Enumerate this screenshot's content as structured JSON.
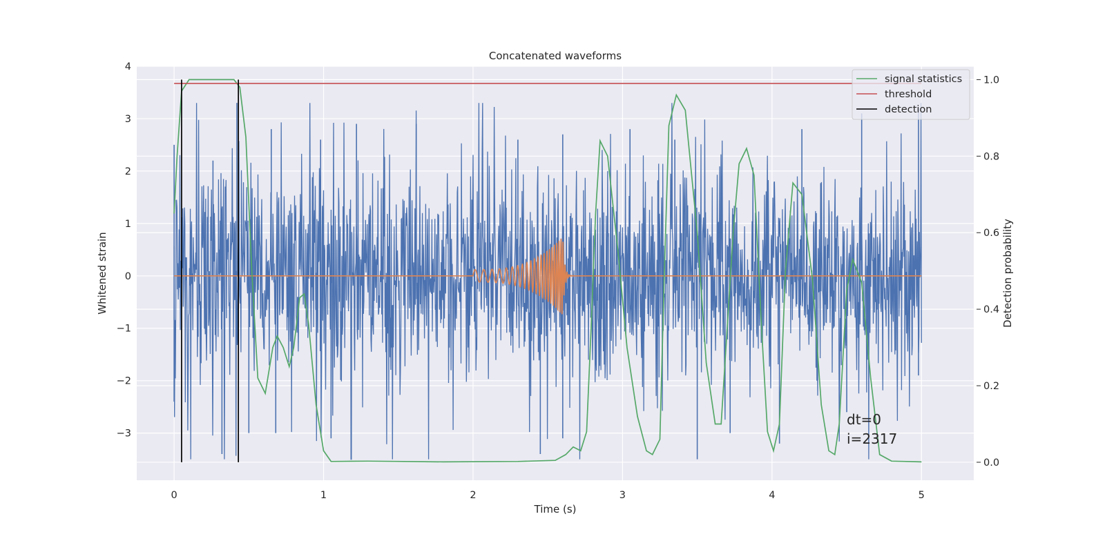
{
  "chart_data": {
    "type": "line",
    "title": "Concatenated waveforms",
    "xlabel": "Time (s)",
    "ylabel": "Whitened strain",
    "ylabel_right": "Detection probability",
    "xlim": [
      -0.25,
      5.35
    ],
    "ylim": [
      -3.9,
      4.0
    ],
    "ylim_right": [
      -0.047,
      1.035
    ],
    "x_ticks": [
      0,
      1,
      2,
      3,
      4,
      5
    ],
    "y_ticks": [
      -3,
      -2,
      -1,
      0,
      1,
      2,
      3,
      4
    ],
    "y_ticks_right": [
      0.0,
      0.2,
      0.4,
      0.6,
      0.8,
      1.0
    ],
    "y_tick_labels_right": [
      "0.0",
      "0.2",
      "0.4",
      "0.6",
      "0.8",
      "1.0"
    ],
    "grid": true,
    "legend_position": "top-right",
    "legend": [
      "signal statistics",
      "threshold",
      "detection"
    ],
    "annotation": [
      "dt=0",
      "i=2317"
    ],
    "series": [
      {
        "name": "whitened strain noise",
        "axis": "left",
        "color": "#4c72b0",
        "description": "white noise, approx. amplitude envelope",
        "x_range": [
          0,
          5
        ],
        "peak_high": [
          [
            0.0,
            2.5
          ],
          [
            0.26,
            2.2
          ],
          [
            0.42,
            3.3
          ],
          [
            0.65,
            2.8
          ],
          [
            0.98,
            2.6
          ],
          [
            1.22,
            2.9
          ],
          [
            1.62,
            2.9
          ],
          [
            2.3,
            2.6
          ],
          [
            2.6,
            2.7
          ],
          [
            3.05,
            2.8
          ],
          [
            3.35,
            2.6
          ],
          [
            4.2,
            2.8
          ],
          [
            4.6,
            3.1
          ],
          [
            4.98,
            3.2
          ]
        ],
        "peak_low": [
          [
            0.0,
            -2.4
          ],
          [
            0.32,
            -3.4
          ],
          [
            0.5,
            -3.0
          ],
          [
            0.68,
            -3.0
          ],
          [
            1.05,
            -3.1
          ],
          [
            2.45,
            -3.4
          ],
          [
            2.6,
            -3.1
          ],
          [
            3.5,
            -3.5
          ],
          [
            3.72,
            -3.0
          ],
          [
            4.05,
            -3.2
          ],
          [
            4.5,
            -2.6
          ],
          [
            4.98,
            -1.9
          ]
        ]
      },
      {
        "name": "injected waveform",
        "axis": "left",
        "color": "#dd8452",
        "description": "chirp starting at t=2.0 s, merger near t=2.6 s",
        "start": 2.0,
        "merger": 2.6,
        "amplitude_start": 0.12,
        "amplitude_peak": 0.75,
        "frequency_start_hz": 17,
        "frequency_end_hz": 75
      },
      {
        "name": "signal statistics",
        "axis": "right",
        "color": "#55a868",
        "points": [
          [
            0.0,
            0.65
          ],
          [
            0.02,
            0.8
          ],
          [
            0.05,
            0.97
          ],
          [
            0.1,
            1.0
          ],
          [
            0.4,
            1.0
          ],
          [
            0.44,
            0.98
          ],
          [
            0.48,
            0.85
          ],
          [
            0.52,
            0.5
          ],
          [
            0.56,
            0.22
          ],
          [
            0.61,
            0.18
          ],
          [
            0.66,
            0.3
          ],
          [
            0.69,
            0.33
          ],
          [
            0.73,
            0.3
          ],
          [
            0.77,
            0.25
          ],
          [
            0.8,
            0.3
          ],
          [
            0.84,
            0.43
          ],
          [
            0.87,
            0.44
          ],
          [
            0.9,
            0.36
          ],
          [
            0.95,
            0.15
          ],
          [
            1.0,
            0.03
          ],
          [
            1.05,
            0.002
          ],
          [
            1.3,
            0.003
          ],
          [
            1.8,
            0.001
          ],
          [
            2.3,
            0.002
          ],
          [
            2.55,
            0.005
          ],
          [
            2.62,
            0.02
          ],
          [
            2.67,
            0.04
          ],
          [
            2.72,
            0.03
          ],
          [
            2.76,
            0.08
          ],
          [
            2.79,
            0.35
          ],
          [
            2.82,
            0.65
          ],
          [
            2.85,
            0.84
          ],
          [
            2.9,
            0.8
          ],
          [
            2.97,
            0.55
          ],
          [
            3.03,
            0.3
          ],
          [
            3.1,
            0.12
          ],
          [
            3.16,
            0.03
          ],
          [
            3.2,
            0.02
          ],
          [
            3.25,
            0.06
          ],
          [
            3.28,
            0.5
          ],
          [
            3.31,
            0.88
          ],
          [
            3.36,
            0.96
          ],
          [
            3.42,
            0.92
          ],
          [
            3.5,
            0.6
          ],
          [
            3.56,
            0.26
          ],
          [
            3.62,
            0.1
          ],
          [
            3.66,
            0.1
          ],
          [
            3.7,
            0.35
          ],
          [
            3.74,
            0.6
          ],
          [
            3.78,
            0.78
          ],
          [
            3.83,
            0.82
          ],
          [
            3.88,
            0.75
          ],
          [
            3.93,
            0.35
          ],
          [
            3.97,
            0.08
          ],
          [
            4.01,
            0.03
          ],
          [
            4.05,
            0.1
          ],
          [
            4.09,
            0.5
          ],
          [
            4.14,
            0.73
          ],
          [
            4.2,
            0.7
          ],
          [
            4.27,
            0.48
          ],
          [
            4.33,
            0.15
          ],
          [
            4.38,
            0.03
          ],
          [
            4.42,
            0.02
          ],
          [
            4.45,
            0.1
          ],
          [
            4.5,
            0.45
          ],
          [
            4.54,
            0.53
          ],
          [
            4.6,
            0.47
          ],
          [
            4.66,
            0.22
          ],
          [
            4.72,
            0.02
          ],
          [
            4.8,
            0.003
          ],
          [
            5.0,
            0.001
          ]
        ]
      },
      {
        "name": "threshold",
        "axis": "right",
        "color": "#c44e52",
        "x": [
          0,
          5
        ],
        "value": 0.99
      },
      {
        "name": "detection",
        "axis": "right",
        "color": "#000000",
        "x": [
          0.05,
          0.43
        ],
        "y_range": [
          0.0,
          1.0
        ]
      }
    ]
  }
}
